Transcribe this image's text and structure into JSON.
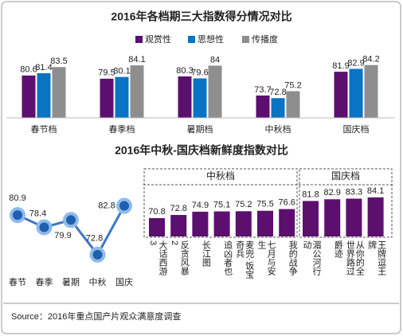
{
  "chart_data": [
    {
      "type": "bar",
      "title": "2016年各档期三大指数得分情况对比",
      "categories": [
        "春节档",
        "春季档",
        "暑期档",
        "中秋档",
        "国庆档"
      ],
      "series": [
        {
          "name": "观赏性",
          "color": "#5c0f6e",
          "values": [
            80.6,
            79.5,
            80.3,
            73.7,
            81.9
          ]
        },
        {
          "name": "思想性",
          "color": "#0a74c4",
          "values": [
            81.4,
            80.1,
            79.6,
            72.8,
            82.9
          ]
        },
        {
          "name": "传播度",
          "color": "#8e8e8e",
          "values": [
            83.5,
            84.1,
            84.0,
            75.2,
            84.2
          ]
        }
      ],
      "ylim": [
        66,
        90
      ],
      "legend": "top"
    },
    {
      "type": "line",
      "title": "2016年中秋-国庆档新鲜度指数对比",
      "categories": [
        "春节",
        "春季",
        "暑期",
        "中秋",
        "国庆"
      ],
      "values": [
        80.9,
        78.4,
        79.9,
        72.8,
        82.8
      ],
      "color": "#3f78c4",
      "ylim": [
        70,
        85
      ]
    },
    {
      "type": "bar",
      "color": "#5c0f6e",
      "ylim": [
        59,
        86
      ],
      "groups": [
        {
          "name": "中秋档",
          "categories": [
            "大话西游3",
            "反贪风暴2",
            "长江图",
            "追凶者也",
            "麦兜·饭宝奇兵",
            "七月与安生",
            "我的战争"
          ],
          "values": [
            70.8,
            72.8,
            74.9,
            75.1,
            75.2,
            75.5,
            76.6
          ]
        },
        {
          "name": "国庆档",
          "categories": [
            "湄公河行动",
            "爵迹",
            "从你的全世界路过",
            "王牌逗王牌"
          ],
          "values": [
            81.8,
            82.9,
            83.3,
            84.1
          ]
        }
      ]
    }
  ],
  "source": "Source：2016年重点国产片观众满意度调查"
}
